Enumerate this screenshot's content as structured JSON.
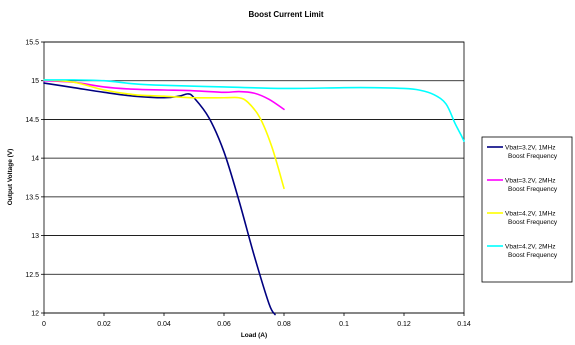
{
  "chart_data": {
    "type": "line",
    "title": "Boost Current Limit",
    "xlabel": "Load (A)",
    "ylabel": "Output Voltage (V)",
    "xlim": [
      0,
      0.14
    ],
    "ylim": [
      12,
      15.5
    ],
    "xticks": [
      0,
      0.02,
      0.04,
      0.06,
      0.08,
      0.1,
      0.12,
      0.14
    ],
    "yticks": [
      12,
      12.5,
      13,
      13.5,
      14,
      14.5,
      15,
      15.5
    ],
    "xtick_labels": [
      "0",
      "0.02",
      "0.04",
      "0.06",
      "0.08",
      "0.1",
      "0.12",
      "0.14"
    ],
    "ytick_labels": [
      "12",
      "12.5",
      "13",
      "13.5",
      "14",
      "14.5",
      "15",
      "15.5"
    ],
    "grid": "horizontal",
    "legend_position": "right",
    "series": [
      {
        "name_line1": "Vbat=3.2V, 1MHz",
        "name_line2": "Boost Frequency",
        "color": "#000080",
        "x": [
          0,
          0.01,
          0.02,
          0.03,
          0.04,
          0.045,
          0.048,
          0.05,
          0.055,
          0.06,
          0.065,
          0.07,
          0.075,
          0.077
        ],
        "y": [
          14.97,
          14.91,
          14.85,
          14.8,
          14.78,
          14.8,
          14.83,
          14.78,
          14.52,
          14.08,
          13.45,
          12.75,
          12.12,
          11.98
        ]
      },
      {
        "name_line1": "Vbat=3.2V, 2MHz",
        "name_line2": "Boost Frequency",
        "color": "#ff00ff",
        "x": [
          0,
          0.01,
          0.02,
          0.03,
          0.04,
          0.05,
          0.06,
          0.065,
          0.07,
          0.075,
          0.08
        ],
        "y": [
          15.0,
          14.98,
          14.92,
          14.89,
          14.88,
          14.87,
          14.85,
          14.86,
          14.84,
          14.76,
          14.63
        ]
      },
      {
        "name_line1": "Vbat=4.2V, 1MHz",
        "name_line2": "Boost Frequency",
        "color": "#ffff00",
        "x": [
          0,
          0.01,
          0.02,
          0.03,
          0.04,
          0.05,
          0.06,
          0.065,
          0.068,
          0.072,
          0.076,
          0.08
        ],
        "y": [
          15.01,
          14.98,
          14.88,
          14.82,
          14.8,
          14.78,
          14.78,
          14.78,
          14.72,
          14.52,
          14.14,
          13.61
        ]
      },
      {
        "name_line1": "Vbat=4.2V, 2MHz",
        "name_line2": "Boost Frequency",
        "color": "#00ffff",
        "x": [
          0,
          0.01,
          0.02,
          0.03,
          0.04,
          0.06,
          0.08,
          0.1,
          0.11,
          0.12,
          0.125,
          0.13,
          0.134,
          0.137,
          0.139,
          0.14
        ],
        "y": [
          15.01,
          15.01,
          15.0,
          14.96,
          14.94,
          14.92,
          14.9,
          14.91,
          14.91,
          14.9,
          14.88,
          14.82,
          14.7,
          14.45,
          14.3,
          14.22
        ]
      }
    ]
  }
}
